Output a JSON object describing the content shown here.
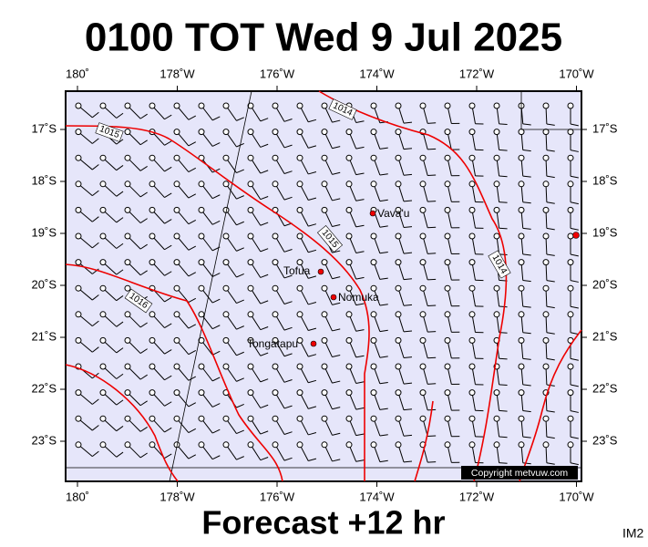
{
  "header": {
    "title": "0100 TOT Wed 9 Jul 2025"
  },
  "footer": {
    "forecast": "Forecast +12 hr",
    "code": "IM2"
  },
  "map": {
    "lon_labels": [
      "180˚",
      "178˚W",
      "176˚W",
      "174˚W",
      "172˚W",
      "170˚W"
    ],
    "lat_labels": [
      "17˚S",
      "18˚S",
      "19˚S",
      "20˚S",
      "21˚S",
      "22˚S",
      "23˚S"
    ],
    "places": [
      "Vava'u",
      "Tofua",
      "Nomuka",
      "Tongatapu"
    ],
    "isobar_labels": [
      "1015",
      "1014",
      "1015",
      "1014",
      "1016"
    ],
    "copyright": "Copyright metvuw.com"
  }
}
